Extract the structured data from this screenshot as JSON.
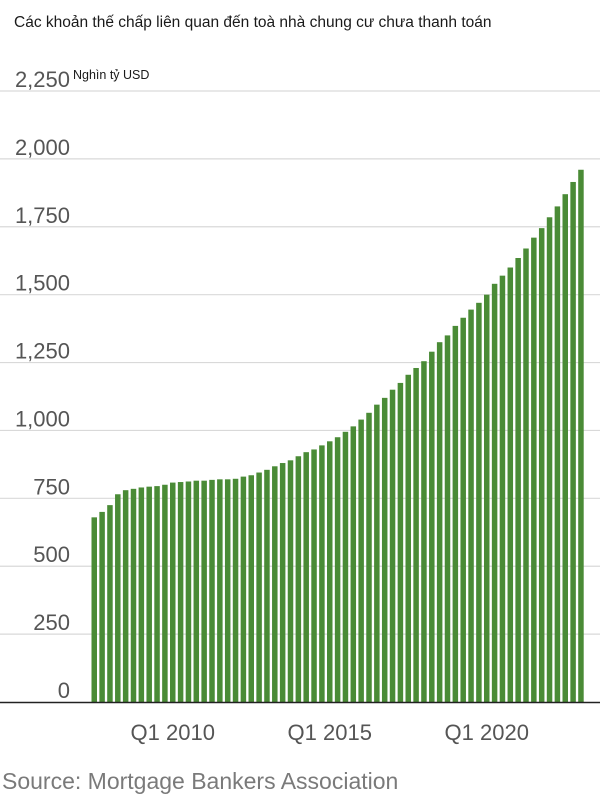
{
  "title": "Các khoản thế chấp liên quan đến toà nhà chung cư chưa thanh toán",
  "unit": "Nghìn tỷ USD",
  "source": "Source: Mortgage Bankers Association",
  "colors": {
    "bar": "#4a8b36",
    "grid": "#d9d9d9",
    "axis": "#222222"
  },
  "chart_data": {
    "type": "bar",
    "title": "Các khoản thế chấp liên quan đến toà nhà chung cư chưa thanh toán",
    "ylabel": "Nghìn tỷ USD",
    "ylim": [
      0,
      2250
    ],
    "y_ticks": [
      "0",
      "250",
      "500",
      "750",
      "1,000",
      "1,250",
      "1,500",
      "1,750",
      "2,000",
      "2,250"
    ],
    "x_tick_labels": [
      {
        "label": "Q1 2010",
        "category": "Q1 2010"
      },
      {
        "label": "Q1 2015",
        "category": "Q1 2015"
      },
      {
        "label": "Q1 2020",
        "category": "Q1 2020"
      }
    ],
    "grid": true,
    "categories": [
      "Q3 2007",
      "Q4 2007",
      "Q1 2008",
      "Q2 2008",
      "Q3 2008",
      "Q4 2008",
      "Q1 2009",
      "Q2 2009",
      "Q3 2009",
      "Q4 2009",
      "Q1 2010",
      "Q2 2010",
      "Q3 2010",
      "Q4 2010",
      "Q1 2011",
      "Q2 2011",
      "Q3 2011",
      "Q4 2011",
      "Q1 2012",
      "Q2 2012",
      "Q3 2012",
      "Q4 2012",
      "Q1 2013",
      "Q2 2013",
      "Q3 2013",
      "Q4 2013",
      "Q1 2014",
      "Q2 2014",
      "Q3 2014",
      "Q4 2014",
      "Q1 2015",
      "Q2 2015",
      "Q3 2015",
      "Q4 2015",
      "Q1 2016",
      "Q2 2016",
      "Q3 2016",
      "Q4 2016",
      "Q1 2017",
      "Q2 2017",
      "Q3 2017",
      "Q4 2017",
      "Q1 2018",
      "Q2 2018",
      "Q3 2018",
      "Q4 2018",
      "Q1 2019",
      "Q2 2019",
      "Q3 2019",
      "Q4 2019",
      "Q1 2020",
      "Q2 2020",
      "Q3 2020",
      "Q4 2020",
      "Q1 2021",
      "Q2 2021",
      "Q3 2021",
      "Q4 2021",
      "Q1 2022",
      "Q2 2022",
      "Q3 2022",
      "Q4 2022",
      "Q1 2023"
    ],
    "values": [
      680,
      700,
      725,
      765,
      780,
      785,
      790,
      793,
      795,
      800,
      808,
      810,
      812,
      815,
      815,
      818,
      820,
      820,
      822,
      830,
      835,
      845,
      855,
      868,
      880,
      890,
      905,
      920,
      930,
      945,
      960,
      975,
      995,
      1015,
      1040,
      1065,
      1095,
      1120,
      1150,
      1175,
      1205,
      1230,
      1255,
      1290,
      1325,
      1350,
      1385,
      1415,
      1445,
      1470,
      1500,
      1540,
      1570,
      1600,
      1635,
      1670,
      1710,
      1745,
      1785,
      1825,
      1870,
      1915,
      1960
    ]
  }
}
